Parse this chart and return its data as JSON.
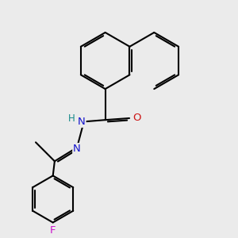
{
  "background_color": "#ebebeb",
  "bond_color": "#000000",
  "bond_width": 1.5,
  "dbo": 0.055,
  "atom_colors": {
    "N": "#1414cc",
    "O": "#cc1414",
    "F": "#cc14cc",
    "H": "#148888"
  },
  "font_size": 9.5
}
